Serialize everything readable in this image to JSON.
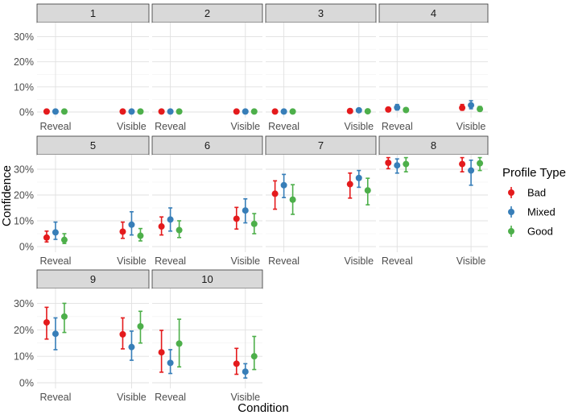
{
  "chart_data": {
    "type": "scatter",
    "xlabel": "Condition",
    "ylabel": "Confidence",
    "conditions": [
      "Reveal",
      "Visible"
    ],
    "y_ticks": [
      "0%",
      "10%",
      "20%",
      "30%"
    ],
    "ylim": [
      0,
      0.35
    ],
    "legend": {
      "title": "Profile Type",
      "position": "right"
    },
    "series": [
      {
        "name": "Bad",
        "color": "#e41a1c"
      },
      {
        "name": "Mixed",
        "color": "#377eb8"
      },
      {
        "name": "Good",
        "color": "#4daf4a"
      }
    ],
    "panels": [
      {
        "label": "1",
        "values": {
          "Reveal": [
            [
              0.002,
              0.0,
              0.004
            ],
            [
              0.002,
              0.0,
              0.004
            ],
            [
              0.002,
              0.0,
              0.004
            ]
          ],
          "Visible": [
            [
              0.002,
              0.0,
              0.004
            ],
            [
              0.002,
              0.0,
              0.004
            ],
            [
              0.002,
              0.0,
              0.004
            ]
          ]
        }
      },
      {
        "label": "2",
        "values": {
          "Reveal": [
            [
              0.002,
              0.0,
              0.004
            ],
            [
              0.002,
              0.0,
              0.004
            ],
            [
              0.002,
              0.0,
              0.004
            ]
          ],
          "Visible": [
            [
              0.002,
              0.0,
              0.004
            ],
            [
              0.002,
              0.0,
              0.004
            ],
            [
              0.002,
              0.0,
              0.004
            ]
          ]
        }
      },
      {
        "label": "3",
        "values": {
          "Reveal": [
            [
              0.002,
              0.0,
              0.004
            ],
            [
              0.002,
              0.0,
              0.004
            ],
            [
              0.002,
              0.0,
              0.004
            ]
          ],
          "Visible": [
            [
              0.004,
              0.001,
              0.008
            ],
            [
              0.007,
              0.003,
              0.012
            ],
            [
              0.003,
              0.0,
              0.006
            ]
          ]
        }
      },
      {
        "label": "4",
        "values": {
          "Reveal": [
            [
              0.01,
              0.003,
              0.018
            ],
            [
              0.018,
              0.008,
              0.03
            ],
            [
              0.008,
              0.002,
              0.015
            ]
          ],
          "Visible": [
            [
              0.017,
              0.007,
              0.03
            ],
            [
              0.027,
              0.013,
              0.045
            ],
            [
              0.012,
              0.004,
              0.022
            ]
          ]
        }
      },
      {
        "label": "5",
        "values": {
          "Reveal": [
            [
              0.035,
              0.018,
              0.06
            ],
            [
              0.055,
              0.028,
              0.095
            ],
            [
              0.026,
              0.012,
              0.05
            ]
          ],
          "Visible": [
            [
              0.058,
              0.032,
              0.095
            ],
            [
              0.085,
              0.045,
              0.135
            ],
            [
              0.042,
              0.022,
              0.07
            ]
          ]
        }
      },
      {
        "label": "6",
        "values": {
          "Reveal": [
            [
              0.078,
              0.045,
              0.115
            ],
            [
              0.105,
              0.06,
              0.15
            ],
            [
              0.064,
              0.035,
              0.1
            ]
          ],
          "Visible": [
            [
              0.108,
              0.068,
              0.152
            ],
            [
              0.14,
              0.092,
              0.185
            ],
            [
              0.088,
              0.05,
              0.128
            ]
          ]
        }
      },
      {
        "label": "7",
        "values": {
          "Reveal": [
            [
              0.205,
              0.145,
              0.255
            ],
            [
              0.238,
              0.19,
              0.28
            ],
            [
              0.182,
              0.125,
              0.24
            ]
          ],
          "Visible": [
            [
              0.242,
              0.188,
              0.285
            ],
            [
              0.266,
              0.23,
              0.295
            ],
            [
              0.218,
              0.162,
              0.265
            ]
          ]
        }
      },
      {
        "label": "8",
        "values": {
          "Reveal": [
            [
              0.325,
              0.302,
              0.345
            ],
            [
              0.315,
              0.285,
              0.34
            ],
            [
              0.32,
              0.29,
              0.345
            ]
          ],
          "Visible": [
            [
              0.32,
              0.29,
              0.345
            ],
            [
              0.295,
              0.238,
              0.335
            ],
            [
              0.323,
              0.295,
              0.345
            ]
          ]
        }
      },
      {
        "label": "9",
        "values": {
          "Reveal": [
            [
              0.228,
              0.165,
              0.285
            ],
            [
              0.185,
              0.125,
              0.245
            ],
            [
              0.25,
              0.19,
              0.3
            ]
          ],
          "Visible": [
            [
              0.183,
              0.128,
              0.245
            ],
            [
              0.135,
              0.085,
              0.195
            ],
            [
              0.213,
              0.15,
              0.27
            ]
          ]
        }
      },
      {
        "label": "10",
        "values": {
          "Reveal": [
            [
              0.115,
              0.04,
              0.198
            ],
            [
              0.075,
              0.035,
              0.125
            ],
            [
              0.148,
              0.06,
              0.24
            ]
          ],
          "Visible": [
            [
              0.072,
              0.032,
              0.13
            ],
            [
              0.042,
              0.018,
              0.072
            ],
            [
              0.1,
              0.05,
              0.175
            ]
          ]
        }
      }
    ]
  }
}
